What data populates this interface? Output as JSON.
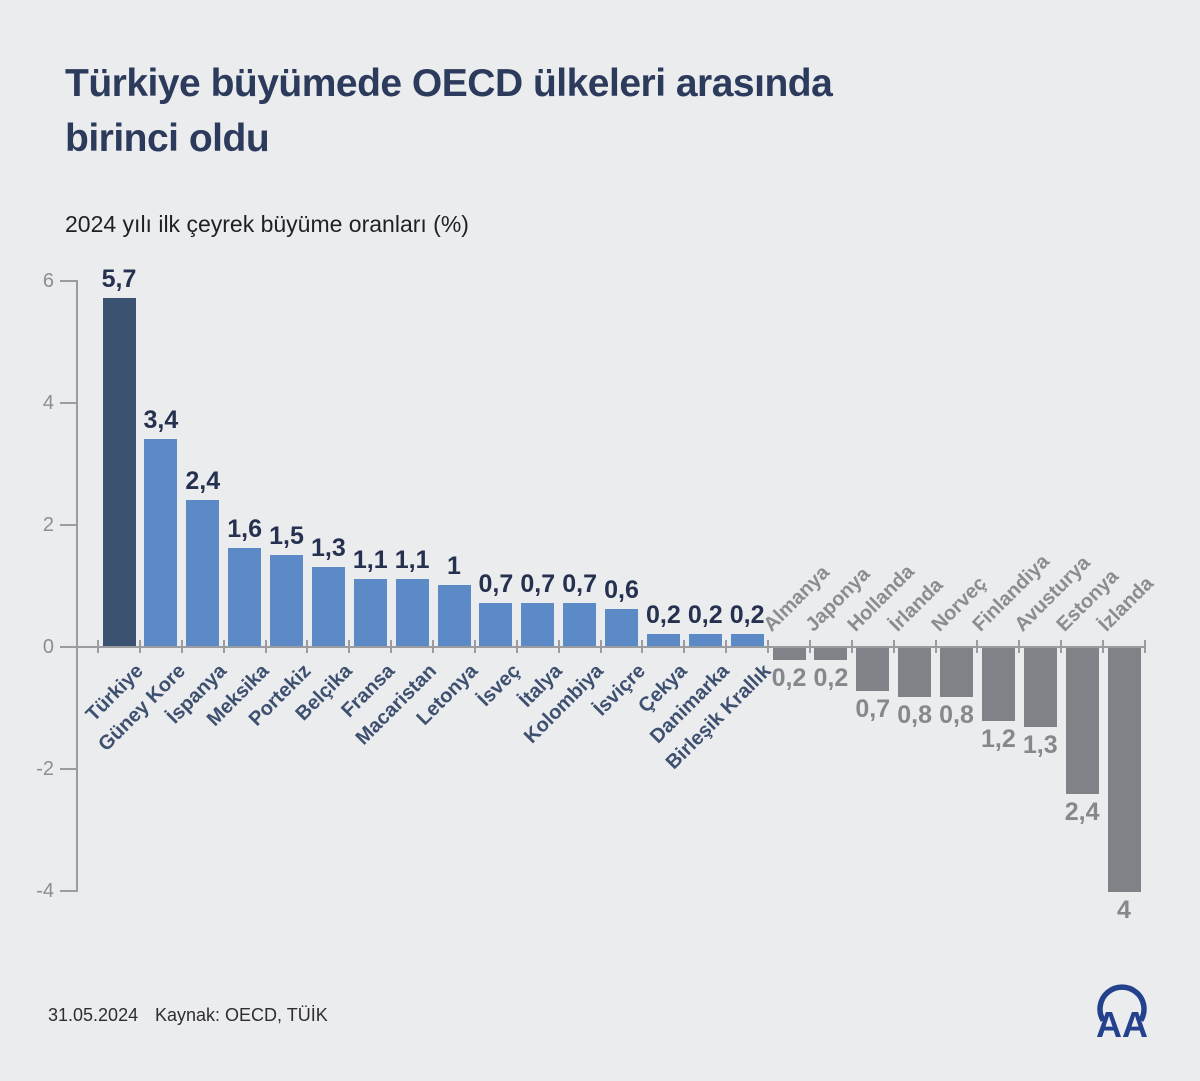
{
  "header": {
    "title_line1": "Türkiye büyümede OECD ülkeleri arasında",
    "title_line2": "birinci oldu",
    "subtitle": "2024 yılı ilk çeyrek büyüme oranları (%)"
  },
  "footer": {
    "date": "31.05.2024",
    "source": "Kaynak: OECD, TÜİK",
    "logo_text": "AA"
  },
  "colors": {
    "background": "#ebecee",
    "highlight_bar": "#3b5270",
    "positive_bar": "#5b8ac6",
    "negative_bar": "#818287",
    "positive_text": "#25314f",
    "negative_text": "#87888d",
    "axis": "#9b9ca0",
    "title": "#2c3a5c",
    "logo_blue": "#24418e"
  },
  "chart_data": {
    "type": "bar",
    "title": "2024 yılı ilk çeyrek büyüme oranları (%)",
    "xlabel": "",
    "ylabel": "",
    "ylim": [
      -4,
      6
    ],
    "yticks": [
      6,
      4,
      2,
      0,
      -2,
      -4
    ],
    "ytick_labels": [
      "6",
      "4",
      "2",
      "0",
      "-2",
      "-4"
    ],
    "grid": false,
    "legend": false,
    "highlight_index": 0,
    "categories": [
      "Türkiye",
      "Güney Kore",
      "İspanya",
      "Meksika",
      "Portekiz",
      "Belçika",
      "Fransa",
      "Macaristan",
      "Letonya",
      "İsveç",
      "İtalya",
      "Kolombiya",
      "İsviçre",
      "Çekya",
      "Danimarka",
      "Birleşik Krallık",
      "Almanya",
      "Japonya",
      "Hollanda",
      "İrlanda",
      "Norveç",
      "Finlandiya",
      "Avusturya",
      "Estonya",
      "İzlanda"
    ],
    "values": [
      5.7,
      3.4,
      2.4,
      1.6,
      1.5,
      1.3,
      1.1,
      1.1,
      1,
      0.7,
      0.7,
      0.7,
      0.6,
      0.2,
      0.2,
      0.2,
      -0.2,
      -0.2,
      -0.7,
      -0.8,
      -0.8,
      -1.2,
      -1.3,
      -2.4,
      -4
    ],
    "value_labels": [
      "5,7",
      "3,4",
      "2,4",
      "1,6",
      "1,5",
      "1,3",
      "1,1",
      "1,1",
      "1",
      "0,7",
      "0,7",
      "0,7",
      "0,6",
      "0,2",
      "0,2",
      "0,2",
      "0,2",
      "0,2",
      "0,7",
      "0,8",
      "0,8",
      "1,2",
      "1,3",
      "2,4",
      "4"
    ]
  }
}
